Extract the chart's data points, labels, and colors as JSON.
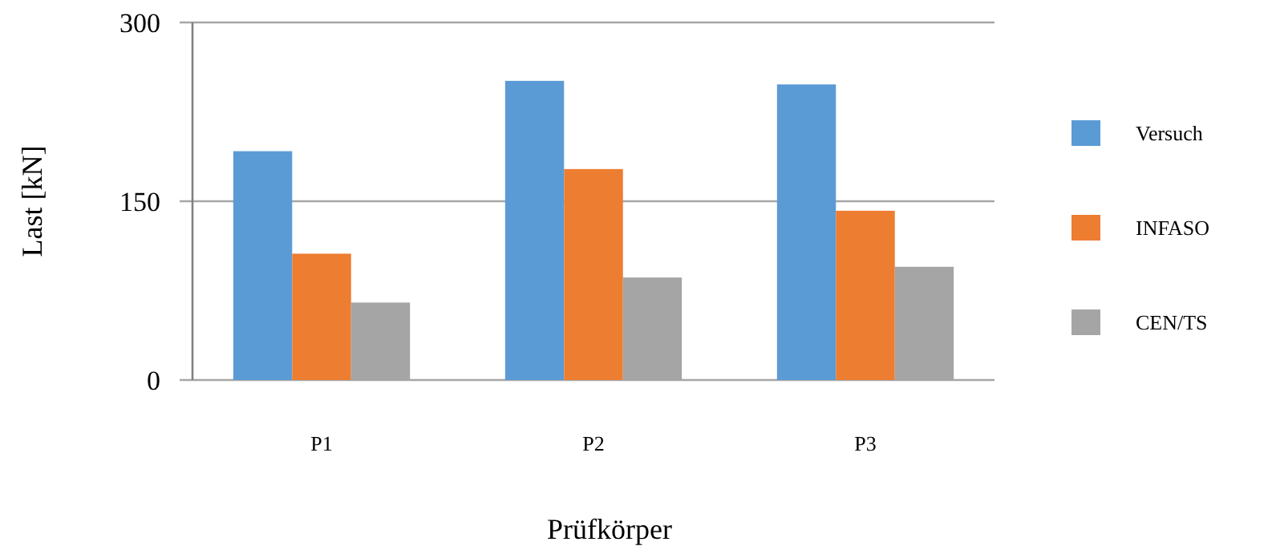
{
  "chart_data": {
    "type": "bar",
    "xlabel": "Prüfkörper",
    "ylabel": "Last [kN]",
    "categories": [
      "P1",
      "P2",
      "P3"
    ],
    "series": [
      {
        "name": "Versuch",
        "color": "#5b9bd5",
        "values": [
          192,
          251,
          248
        ]
      },
      {
        "name": "INFASO",
        "color": "#ed7d31",
        "values": [
          106,
          177,
          142
        ]
      },
      {
        "name": "CEN/TS",
        "color": "#a5a5a5",
        "values": [
          65,
          86,
          95
        ]
      }
    ],
    "ylim": [
      0,
      300
    ],
    "yticks": [
      0,
      150,
      300
    ],
    "grid": "y",
    "legend": "right"
  }
}
